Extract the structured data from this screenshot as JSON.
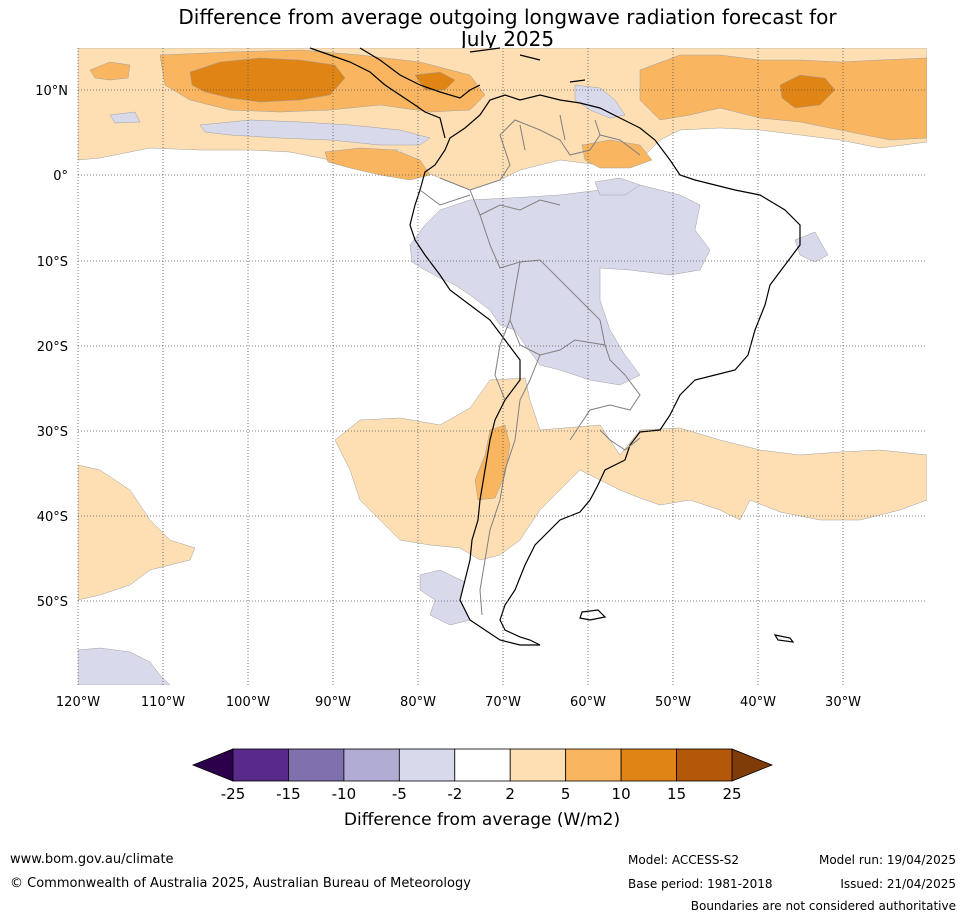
{
  "title_line1": "Difference from average outgoing longwave radiation forecast for",
  "title_line2": "July 2025",
  "map": {
    "lat_labels": [
      "10°N",
      "0°",
      "10°S",
      "20°S",
      "30°S",
      "40°S",
      "50°S"
    ],
    "lon_labels": [
      "120°W",
      "110°W",
      "100°W",
      "90°W",
      "80°W",
      "70°W",
      "60°W",
      "50°W",
      "40°W",
      "30°W"
    ],
    "colors": {
      "strong_warm": "#e08415",
      "moderate_warm": "#f9b55f",
      "light_warm": "#fddfb3",
      "light_cool": "#d9d9ec",
      "moderate_cool": "#b1acd3",
      "strong_cool": "#8170ae"
    }
  },
  "colorbar": {
    "ticks": [
      "-25",
      "-15",
      "-10",
      "-5",
      "-2",
      "2",
      "5",
      "10",
      "15",
      "25"
    ],
    "colors": [
      "#5a2a8a",
      "#8170ae",
      "#b1acd3",
      "#d9d9ec",
      "#ffffff",
      "#fddfb3",
      "#f9b55f",
      "#e08415",
      "#b35809"
    ],
    "under_color": "#2d004b",
    "over_color": "#7f3b08",
    "label": "Difference from average (W/m2)"
  },
  "footer": {
    "website": "www.bom.gov.au/climate",
    "copyright": "© Commonwealth of Australia 2025, Australian Bureau of Meteorology",
    "model": "Model: ACCESS-S2",
    "base_period": "Base period: 1981-2018",
    "model_run": "Model run: 19/04/2025",
    "issued": "Issued: 21/04/2025",
    "disclaimer": "Boundaries are not considered authoritative"
  }
}
